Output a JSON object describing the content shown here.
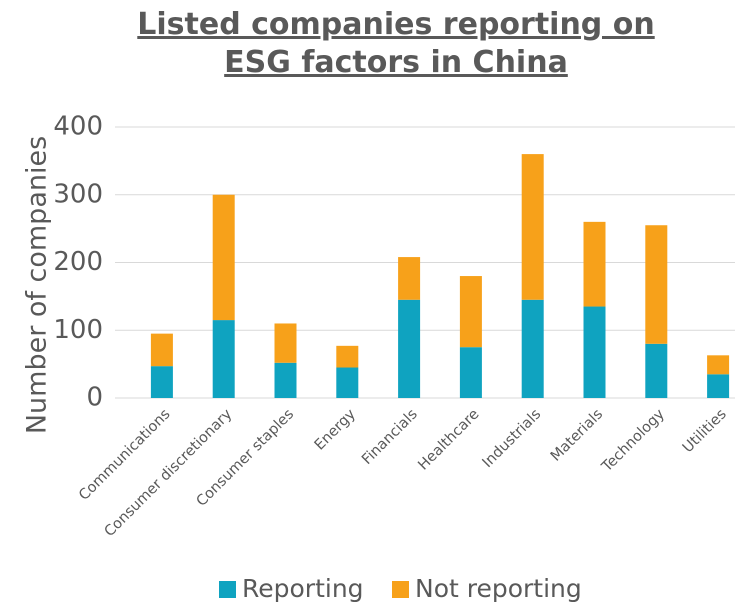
{
  "chart_data": {
    "type": "stacked_bar",
    "title": "Listed companies reporting on ESG factors in China",
    "y_label": "Number of companies",
    "categories": [
      "Communications",
      "Consumer discretionary",
      "Consumer staples",
      "Energy",
      "Financials",
      "Healthcare",
      "Industrials",
      "Materials",
      "Technology",
      "Utilities"
    ],
    "series": [
      {
        "name": "Reporting",
        "color": "#0fa3c0",
        "values": [
          47,
          115,
          52,
          45,
          145,
          75,
          145,
          135,
          80,
          35
        ]
      },
      {
        "name": "Not reporting",
        "color": "#f7a11a",
        "values": [
          48,
          185,
          58,
          32,
          63,
          105,
          215,
          125,
          175,
          28
        ]
      }
    ],
    "ylim": [
      0,
      400
    ],
    "yticks": [
      0,
      100,
      200,
      300,
      400
    ],
    "grid": true
  }
}
